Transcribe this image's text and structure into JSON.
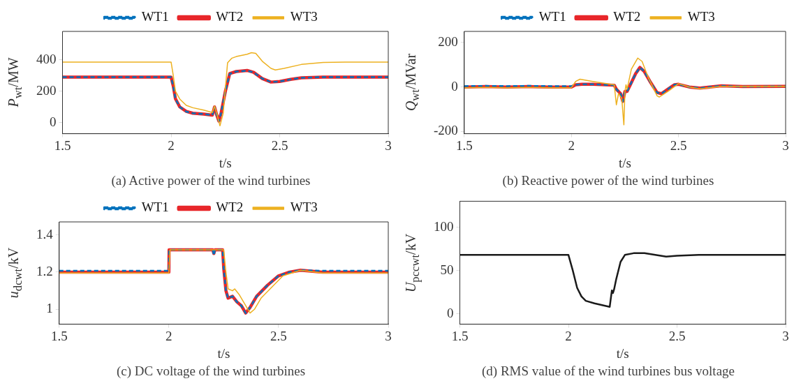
{
  "chart_data": [
    {
      "type": "line",
      "title": "(a) Active power of the wind turbines",
      "xlabel": "t/s",
      "ylabel": "P$_{wt}$/MW",
      "xlim": [
        1.5,
        3
      ],
      "xticks": [
        1.5,
        2,
        2.5,
        3
      ],
      "ylim": [
        -70,
        580
      ],
      "yticks": [
        0,
        200,
        400
      ],
      "legend": "top",
      "grid": false,
      "series": [
        {
          "name": "WT1",
          "color": "#0072bd",
          "line_style": "dashed",
          "x": [
            1.5,
            1.6,
            1.7,
            1.8,
            1.9,
            2.0,
            2.01,
            2.02,
            2.04,
            2.07,
            2.1,
            2.15,
            2.19,
            2.2,
            2.21,
            2.22,
            2.23,
            2.25,
            2.27,
            2.3,
            2.35,
            2.38,
            2.42,
            2.46,
            2.5,
            2.55,
            2.6,
            2.7,
            2.8,
            2.9,
            3.0
          ],
          "values": [
            290,
            290,
            290,
            290,
            290,
            290,
            230,
            150,
            100,
            70,
            60,
            55,
            48,
            100,
            50,
            10,
            60,
            200,
            310,
            325,
            330,
            320,
            280,
            258,
            262,
            275,
            285,
            290,
            290,
            290,
            290
          ]
        },
        {
          "name": "WT2",
          "color": "#e8262a",
          "line_style": "solid",
          "x": [
            1.5,
            1.6,
            1.7,
            1.8,
            1.9,
            2.0,
            2.01,
            2.02,
            2.04,
            2.07,
            2.1,
            2.15,
            2.19,
            2.2,
            2.21,
            2.22,
            2.23,
            2.25,
            2.27,
            2.3,
            2.35,
            2.38,
            2.42,
            2.46,
            2.5,
            2.55,
            2.6,
            2.7,
            2.8,
            2.9,
            3.0
          ],
          "values": [
            290,
            290,
            290,
            290,
            290,
            290,
            232,
            152,
            100,
            72,
            60,
            55,
            48,
            100,
            50,
            10,
            60,
            200,
            312,
            325,
            332,
            320,
            280,
            258,
            262,
            275,
            285,
            290,
            290,
            290,
            290
          ]
        },
        {
          "name": "WT3",
          "color": "#edb120",
          "line_style": "solid",
          "x": [
            1.5,
            1.6,
            1.7,
            1.8,
            1.9,
            2.0,
            2.01,
            2.02,
            2.04,
            2.07,
            2.1,
            2.15,
            2.19,
            2.2,
            2.21,
            2.225,
            2.24,
            2.26,
            2.28,
            2.3,
            2.35,
            2.37,
            2.39,
            2.42,
            2.46,
            2.48,
            2.52,
            2.6,
            2.7,
            2.8,
            3.0
          ],
          "values": [
            385,
            385,
            385,
            385,
            385,
            385,
            300,
            200,
            150,
            110,
            95,
            80,
            65,
            105,
            60,
            -20,
            60,
            380,
            410,
            420,
            435,
            445,
            440,
            390,
            345,
            335,
            345,
            370,
            383,
            385,
            385
          ]
        }
      ]
    },
    {
      "type": "line",
      "title": "(b) Reactive power of the wind turbines",
      "xlabel": "t/s",
      "ylabel": "Q$_{wt}$/MVar",
      "xlim": [
        1.5,
        3
      ],
      "xticks": [
        1.5,
        2,
        2.5,
        3
      ],
      "ylim": [
        -210,
        250
      ],
      "yticks": [
        -200,
        0,
        200
      ],
      "legend": "top",
      "grid": false,
      "series": [
        {
          "name": "WT1",
          "color": "#0072bd",
          "line_style": "dashed",
          "x": [
            1.5,
            1.6,
            1.7,
            1.8,
            1.9,
            2.0,
            2.02,
            2.05,
            2.1,
            2.2,
            2.21,
            2.23,
            2.24,
            2.25,
            2.26,
            2.27,
            2.3,
            2.32,
            2.34,
            2.37,
            2.4,
            2.42,
            2.45,
            2.48,
            2.5,
            2.55,
            2.6,
            2.7,
            2.8,
            3.0
          ],
          "values": [
            4,
            5,
            4,
            5,
            4,
            4,
            10,
            12,
            12,
            8,
            -10,
            -30,
            -65,
            -20,
            -20,
            0,
            60,
            88,
            70,
            20,
            -25,
            -30,
            -10,
            10,
            12,
            0,
            -5,
            5,
            2,
            3
          ]
        },
        {
          "name": "WT2",
          "color": "#e8262a",
          "line_style": "solid",
          "x": [
            1.5,
            1.6,
            1.7,
            1.8,
            1.9,
            2.0,
            2.02,
            2.05,
            2.1,
            2.2,
            2.21,
            2.23,
            2.24,
            2.25,
            2.26,
            2.27,
            2.3,
            2.32,
            2.34,
            2.37,
            2.4,
            2.42,
            2.45,
            2.48,
            2.5,
            2.55,
            2.6,
            2.7,
            2.8,
            3.0
          ],
          "values": [
            0,
            2,
            0,
            2,
            0,
            0,
            10,
            12,
            12,
            8,
            -10,
            -30,
            -65,
            -20,
            -20,
            0,
            60,
            88,
            70,
            20,
            -25,
            -30,
            -10,
            10,
            12,
            0,
            -5,
            5,
            2,
            3
          ]
        },
        {
          "name": "WT3",
          "color": "#edb120",
          "line_style": "solid",
          "x": [
            1.5,
            1.6,
            1.7,
            1.8,
            1.9,
            2.0,
            2.02,
            2.04,
            2.1,
            2.2,
            2.21,
            2.22,
            2.235,
            2.245,
            2.25,
            2.255,
            2.26,
            2.28,
            2.31,
            2.33,
            2.36,
            2.4,
            2.41,
            2.45,
            2.5,
            2.55,
            2.6,
            2.7,
            3.0
          ],
          "values": [
            -3,
            -2,
            -3,
            -2,
            -3,
            -3,
            25,
            35,
            25,
            10,
            -80,
            -30,
            -50,
            -170,
            -20,
            10,
            -10,
            80,
            130,
            115,
            40,
            -40,
            -45,
            -20,
            15,
            0,
            -8,
            3,
            3
          ]
        }
      ]
    },
    {
      "type": "line",
      "title": "(c) DC voltage of the wind turbines",
      "xlabel": "t/s",
      "ylabel": "u$_{dcwt}$/kV",
      "xlim": [
        1.5,
        3
      ],
      "xticks": [
        1.5,
        2,
        2.5,
        3
      ],
      "ylim": [
        0.92,
        1.47
      ],
      "yticks": [
        1,
        1.2,
        1.4
      ],
      "legend": "top",
      "grid": false,
      "series": [
        {
          "name": "WT1",
          "color": "#0072bd",
          "line_style": "dashed",
          "x": [
            1.5,
            1.6,
            1.7,
            1.8,
            1.9,
            2.0,
            2.001,
            2.2,
            2.205,
            2.21,
            2.245,
            2.25,
            2.26,
            2.27,
            2.29,
            2.31,
            2.33,
            2.35,
            2.37,
            2.4,
            2.45,
            2.5,
            2.55,
            2.6,
            2.7,
            2.8,
            3.0
          ],
          "values": [
            1.207,
            1.207,
            1.207,
            1.207,
            1.207,
            1.207,
            1.32,
            1.32,
            1.29,
            1.32,
            1.32,
            1.22,
            1.1,
            1.06,
            1.07,
            1.04,
            1.02,
            0.98,
            1.01,
            1.07,
            1.13,
            1.18,
            1.2,
            1.21,
            1.207,
            1.207,
            1.207
          ]
        },
        {
          "name": "WT2",
          "color": "#e8262a",
          "line_style": "solid",
          "x": [
            1.5,
            1.6,
            1.7,
            1.8,
            1.9,
            2.0,
            2.001,
            2.2,
            2.205,
            2.21,
            2.245,
            2.25,
            2.26,
            2.27,
            2.29,
            2.31,
            2.33,
            2.35,
            2.37,
            2.4,
            2.45,
            2.5,
            2.55,
            2.6,
            2.7,
            2.8,
            3.0
          ],
          "values": [
            1.2,
            1.2,
            1.2,
            1.2,
            1.2,
            1.2,
            1.32,
            1.32,
            1.3,
            1.32,
            1.32,
            1.22,
            1.1,
            1.06,
            1.07,
            1.04,
            1.02,
            0.98,
            1.01,
            1.07,
            1.13,
            1.18,
            1.2,
            1.21,
            1.2,
            1.2,
            1.2
          ]
        },
        {
          "name": "WT3",
          "color": "#edb120",
          "line_style": "solid",
          "x": [
            1.5,
            1.6,
            1.7,
            1.8,
            1.9,
            2.0,
            2.005,
            2.25,
            2.26,
            2.27,
            2.29,
            2.3,
            2.32,
            2.35,
            2.37,
            2.39,
            2.42,
            2.47,
            2.52,
            2.6,
            2.7,
            3.0
          ],
          "values": [
            1.195,
            1.195,
            1.195,
            1.195,
            1.195,
            1.195,
            1.32,
            1.32,
            1.2,
            1.11,
            1.1,
            1.11,
            1.08,
            1.02,
            0.98,
            1.0,
            1.06,
            1.12,
            1.18,
            1.21,
            1.195,
            1.195
          ]
        }
      ]
    },
    {
      "type": "line",
      "title": "(d) RMS value of the wind turbines bus voltage",
      "xlabel": "t/s",
      "ylabel": "U$_{pccwt}$/kV",
      "xlim": [
        1.5,
        3
      ],
      "xticks": [
        1.5,
        2,
        2.5,
        3
      ],
      "ylim": [
        -12,
        130
      ],
      "yticks": [
        0,
        50,
        100
      ],
      "grid": false,
      "series": [
        {
          "color": "#1a1a1a",
          "x": [
            1.5,
            1.6,
            1.7,
            1.8,
            1.9,
            2.0,
            2.02,
            2.04,
            2.06,
            2.08,
            2.12,
            2.19,
            2.2,
            2.205,
            2.21,
            2.22,
            2.24,
            2.26,
            2.3,
            2.35,
            2.4,
            2.45,
            2.5,
            2.6,
            2.8,
            3.0
          ],
          "values": [
            68,
            68,
            68,
            68,
            68,
            68,
            50,
            30,
            20,
            15,
            12,
            8,
            27,
            24,
            28,
            40,
            60,
            68,
            70,
            70,
            68,
            66,
            67,
            68,
            68,
            68
          ]
        }
      ]
    }
  ]
}
